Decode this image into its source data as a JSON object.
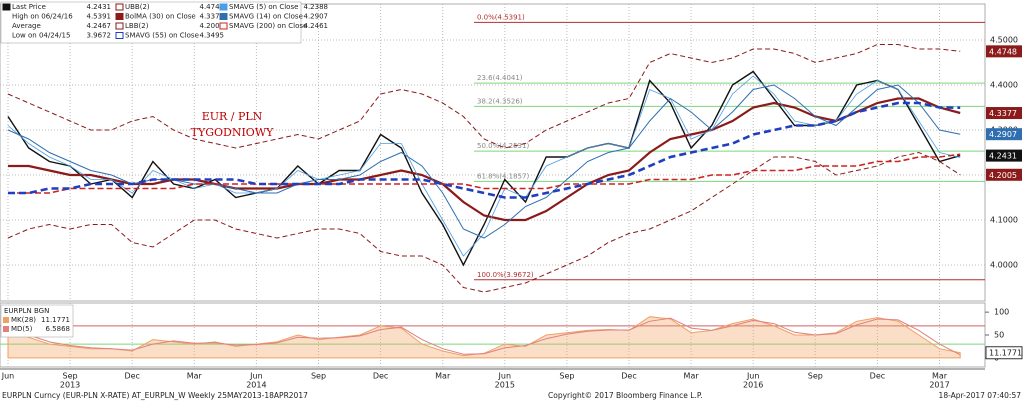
{
  "chart_data": [
    {
      "type": "line",
      "annotations": [
        "EUR / PLN",
        "TYGODNIOWY"
      ],
      "categories": [
        "Jun",
        null,
        null,
        "Sep",
        null,
        null,
        "Dec",
        null,
        null,
        "Mar",
        null,
        null,
        "Jun",
        null,
        null,
        "Sep",
        null,
        null,
        "Dec",
        null,
        null,
        "Mar",
        null,
        null,
        "Jun",
        null,
        null,
        "Sep",
        null,
        null,
        "Dec",
        null,
        null,
        "Mar",
        null,
        null,
        "Jun",
        null,
        null,
        "Sep",
        null,
        null,
        "Dec",
        null,
        null,
        "Mar",
        null
      ],
      "x_years": [
        "2013",
        "2014",
        "2015",
        "2016",
        "2017"
      ],
      "ylim": [
        3.92,
        4.58
      ],
      "yticks": [
        {
          "value": 4.5,
          "label": "4.5000"
        },
        {
          "value": 4.4,
          "label": "4.4000"
        },
        {
          "value": 4.3,
          "label": "4.3000"
        },
        {
          "value": 4.2,
          "label": "4.2000"
        },
        {
          "value": 4.1,
          "label": "4.1000"
        },
        {
          "value": 4.0,
          "label": "4.0000"
        }
      ],
      "grid": true,
      "stats": [
        {
          "name": "High on 06/24/16",
          "value": 4.5391
        },
        {
          "name": "Average",
          "value": 4.2467
        },
        {
          "name": "Low on 04/24/15",
          "value": 3.9672
        }
      ],
      "fibonacci": [
        {
          "value": 4.5391,
          "label": "0.0%(4.5391)",
          "color": "#b03030"
        },
        {
          "value": 4.4041,
          "label": "23.6(4.4041)",
          "color": "#7cd67c"
        },
        {
          "value": 4.3526,
          "label": "38.2(4.3526)",
          "color": "#7cd67c"
        },
        {
          "value": 4.2531,
          "label": "50.0%(4.2531)",
          "color": "#7cd67c"
        },
        {
          "value": 4.1857,
          "label": "61.8%(4.1857)",
          "color": "#7cd67c"
        },
        {
          "value": 3.9672,
          "label": "100.0%(3.9672)",
          "color": "#b03030"
        }
      ],
      "series": [
        {
          "name": "Last Price",
          "color": "#111111",
          "width": 1.4,
          "dash": "",
          "tag": true,
          "legend_value": 4.2431,
          "values": [
            4.33,
            4.26,
            4.23,
            4.22,
            4.18,
            4.19,
            4.15,
            4.23,
            4.18,
            4.17,
            4.19,
            4.15,
            4.16,
            4.17,
            4.22,
            4.18,
            4.21,
            4.21,
            4.29,
            4.26,
            4.16,
            4.09,
            4.0,
            4.09,
            4.19,
            4.14,
            4.24,
            4.24,
            4.26,
            4.27,
            4.26,
            4.41,
            4.36,
            4.26,
            4.31,
            4.4,
            4.43,
            4.37,
            4.31,
            4.31,
            4.32,
            4.4,
            4.41,
            4.39,
            4.31,
            4.23,
            4.2431
          ]
        },
        {
          "name": "UBB(2)",
          "color": "#8b1a1a",
          "width": 1,
          "dash": "5 3",
          "tag": true,
          "legend_value": 4.4748,
          "values": [
            4.38,
            4.36,
            4.34,
            4.32,
            4.3,
            4.3,
            4.32,
            4.33,
            4.3,
            4.28,
            4.27,
            4.26,
            4.27,
            4.28,
            4.29,
            4.28,
            4.3,
            4.32,
            4.38,
            4.39,
            4.38,
            4.36,
            4.33,
            4.28,
            4.26,
            4.27,
            4.3,
            4.32,
            4.34,
            4.36,
            4.37,
            4.45,
            4.47,
            4.46,
            4.45,
            4.46,
            4.48,
            4.48,
            4.47,
            4.45,
            4.46,
            4.47,
            4.49,
            4.49,
            4.48,
            4.48,
            4.4748
          ]
        },
        {
          "name": "BolMA (30) on Close",
          "color": "#8b1a1a",
          "width": 2.2,
          "dash": "",
          "tag": true,
          "legend_value": 4.3377,
          "values": [
            4.22,
            4.22,
            4.21,
            4.2,
            4.2,
            4.19,
            4.18,
            4.18,
            4.19,
            4.19,
            4.18,
            4.17,
            4.17,
            4.17,
            4.18,
            4.18,
            4.19,
            4.19,
            4.2,
            4.21,
            4.2,
            4.18,
            4.14,
            4.11,
            4.1,
            4.1,
            4.12,
            4.15,
            4.18,
            4.2,
            4.21,
            4.25,
            4.28,
            4.29,
            4.3,
            4.32,
            4.35,
            4.36,
            4.35,
            4.33,
            4.32,
            4.34,
            4.36,
            4.37,
            4.37,
            4.35,
            4.3377
          ]
        },
        {
          "name": "LBB(2)",
          "color": "#8b1a1a",
          "width": 1,
          "dash": "5 3",
          "tag": true,
          "legend_value": 4.2005,
          "values": [
            4.06,
            4.08,
            4.09,
            4.08,
            4.09,
            4.09,
            4.05,
            4.04,
            4.07,
            4.1,
            4.1,
            4.08,
            4.07,
            4.06,
            4.07,
            4.08,
            4.08,
            4.07,
            4.03,
            4.02,
            4.02,
            4.0,
            3.95,
            3.94,
            3.95,
            3.96,
            3.98,
            4.0,
            4.02,
            4.05,
            4.07,
            4.08,
            4.1,
            4.12,
            4.15,
            4.18,
            4.21,
            4.24,
            4.24,
            4.23,
            4.2,
            4.21,
            4.22,
            4.24,
            4.25,
            4.23,
            4.2005
          ]
        },
        {
          "name": "SMAVG (5) on Close",
          "color": "#4a9ee8",
          "width": 0.8,
          "dash": "",
          "tag": false,
          "legend_value": 4.2388,
          "values": [
            4.31,
            4.27,
            4.24,
            4.22,
            4.19,
            4.19,
            4.16,
            4.21,
            4.19,
            4.17,
            4.18,
            4.16,
            4.16,
            4.17,
            4.21,
            4.19,
            4.2,
            4.21,
            4.27,
            4.27,
            4.18,
            4.1,
            4.02,
            4.07,
            4.17,
            4.15,
            4.22,
            4.24,
            4.26,
            4.27,
            4.26,
            4.39,
            4.37,
            4.28,
            4.3,
            4.38,
            4.42,
            4.38,
            4.32,
            4.31,
            4.32,
            4.38,
            4.41,
            4.39,
            4.32,
            4.25,
            4.2388
          ]
        },
        {
          "name": "SMAVG (14) on Close",
          "color": "#2f6fb0",
          "width": 1,
          "dash": "",
          "tag": true,
          "legend_value": 4.2907,
          "values": [
            4.3,
            4.28,
            4.25,
            4.23,
            4.21,
            4.2,
            4.18,
            4.19,
            4.19,
            4.18,
            4.18,
            4.17,
            4.16,
            4.16,
            4.18,
            4.19,
            4.19,
            4.2,
            4.23,
            4.25,
            4.22,
            4.16,
            4.08,
            4.06,
            4.09,
            4.13,
            4.15,
            4.19,
            4.23,
            4.25,
            4.26,
            4.32,
            4.37,
            4.34,
            4.3,
            4.34,
            4.39,
            4.4,
            4.37,
            4.33,
            4.31,
            4.35,
            4.39,
            4.4,
            4.36,
            4.3,
            4.2907
          ]
        },
        {
          "name": "SMAVG (200) on Close",
          "color": "#cc2222",
          "width": 1.6,
          "dash": "6 3",
          "tag": false,
          "legend_value": 4.2461,
          "values": [
            4.16,
            4.16,
            4.16,
            4.17,
            4.17,
            4.17,
            4.17,
            4.17,
            4.17,
            4.18,
            4.18,
            4.18,
            4.18,
            4.18,
            4.18,
            4.18,
            4.18,
            4.18,
            4.18,
            4.18,
            4.18,
            4.18,
            4.18,
            4.17,
            4.17,
            4.17,
            4.17,
            4.18,
            4.18,
            4.18,
            4.18,
            4.19,
            4.19,
            4.19,
            4.2,
            4.2,
            4.21,
            4.21,
            4.21,
            4.22,
            4.22,
            4.22,
            4.23,
            4.23,
            4.24,
            4.24,
            4.2461
          ]
        },
        {
          "name": "SMAVG (55) on Close",
          "color": "#1f3fbf",
          "width": 2.6,
          "dash": "7 4",
          "tag": false,
          "legend_value": 4.3495,
          "values": [
            4.16,
            4.16,
            4.17,
            4.17,
            4.18,
            4.18,
            4.18,
            4.19,
            4.19,
            4.19,
            4.19,
            4.19,
            4.18,
            4.18,
            4.18,
            4.18,
            4.18,
            4.19,
            4.19,
            4.19,
            4.19,
            4.18,
            4.17,
            4.16,
            4.15,
            4.15,
            4.16,
            4.17,
            4.18,
            4.19,
            4.2,
            4.22,
            4.24,
            4.25,
            4.26,
            4.27,
            4.29,
            4.3,
            4.31,
            4.31,
            4.32,
            4.34,
            4.35,
            4.36,
            4.36,
            4.35,
            4.3495
          ]
        }
      ],
      "footer": [
        "EURPLN Curncy (EUR-PLN X-RATE) AT_EURPLN_W  Weekly 25MAY2013-18APR2017",
        "Copyright© 2017 Bloomberg Finance L.P.",
        "18-Apr-2017 07:40:57"
      ]
    },
    {
      "type": "area",
      "title": "EURPLN BGN",
      "ylim": [
        -20,
        120
      ],
      "yticks": [
        100,
        50,
        0
      ],
      "levels": [
        {
          "value": 70,
          "color": "#d06060"
        },
        {
          "value": 30,
          "color": "#7cd67c"
        }
      ],
      "series": [
        {
          "name": "MK(28)",
          "color": "#f0a060",
          "legend_value": 11.1771,
          "tag": true,
          "values": [
            60,
            45,
            30,
            25,
            20,
            20,
            15,
            40,
            35,
            30,
            35,
            25,
            30,
            35,
            50,
            40,
            45,
            50,
            70,
            65,
            30,
            15,
            5,
            10,
            30,
            25,
            50,
            55,
            60,
            62,
            60,
            90,
            85,
            55,
            60,
            75,
            85,
            70,
            50,
            50,
            55,
            80,
            88,
            80,
            50,
            20,
            11.1771
          ]
        },
        {
          "name": "MD(5)",
          "color": "#e08080",
          "legend_value": 6.5868,
          "tag": false,
          "values": [
            55,
            50,
            35,
            27,
            22,
            20,
            17,
            30,
            37,
            32,
            33,
            28,
            29,
            33,
            45,
            43,
            44,
            48,
            62,
            67,
            40,
            20,
            8,
            9,
            22,
            27,
            42,
            52,
            58,
            61,
            61,
            80,
            87,
            65,
            60,
            70,
            82,
            75,
            56,
            50,
            53,
            72,
            85,
            83,
            60,
            30,
            6.5868
          ]
        }
      ]
    }
  ]
}
